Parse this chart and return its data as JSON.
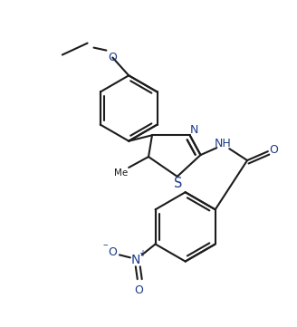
{
  "bg": "#ffffff",
  "lc": "#1c1c1c",
  "hc": "#1a3a8a",
  "lw": 1.5,
  "dbo": 0.04,
  "fs": 9.0,
  "fig_w": 3.28,
  "fig_h": 3.61,
  "xlim": [
    0,
    3.28
  ],
  "ylim": [
    0,
    3.61
  ]
}
